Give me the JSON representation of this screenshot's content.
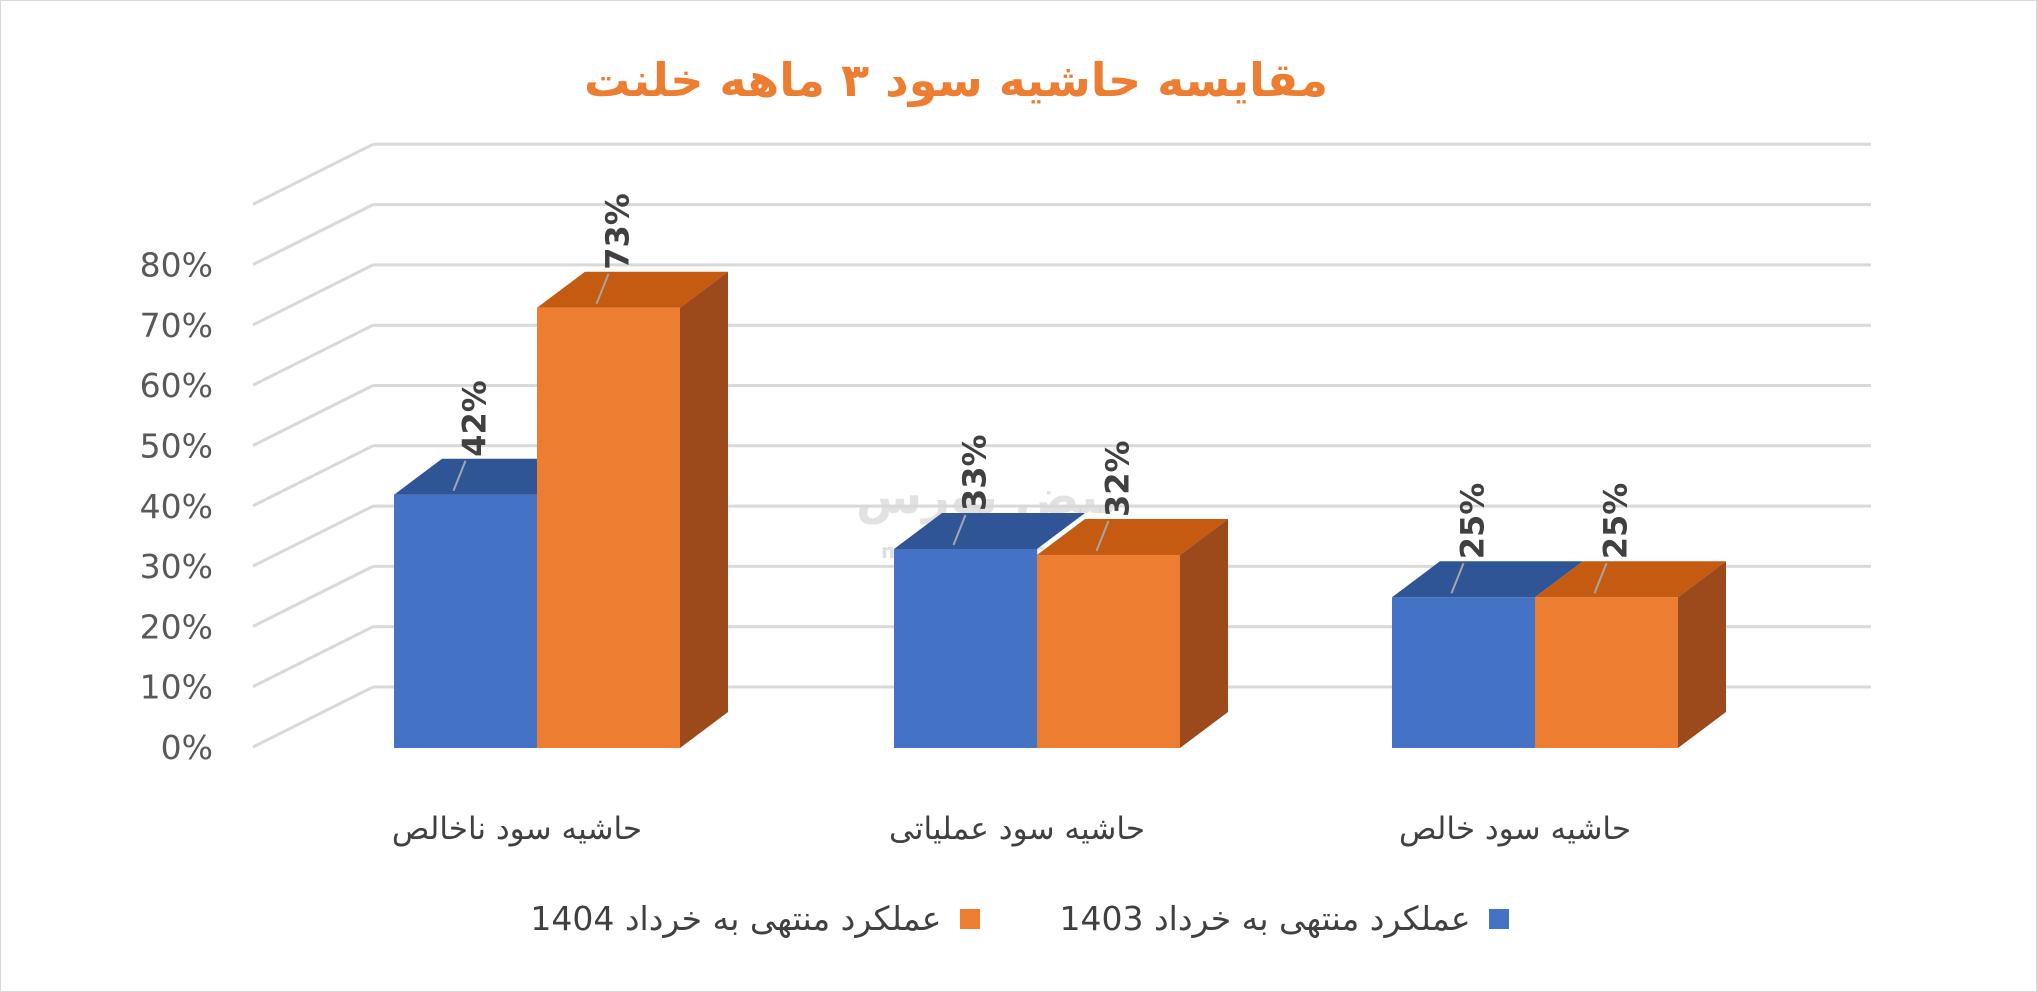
{
  "chart_data": {
    "type": "bar",
    "title": "مقایسه حاشیه سود ۳ ماهه خلنت",
    "categories": [
      "حاشیه سود ناخالص",
      "حاشیه سود عملیاتی",
      "حاشیه سود خالص"
    ],
    "series": [
      {
        "name": "عملکرد منتهی به خرداد 1403",
        "values": [
          42,
          33,
          25
        ],
        "labels": [
          "42%",
          "33%",
          "25%"
        ],
        "color": "#4472c4"
      },
      {
        "name": "عملکرد منتهی به خرداد 1404",
        "values": [
          73,
          32,
          25
        ],
        "labels": [
          "73%",
          "32%",
          "25%"
        ],
        "color": "#ed7d31"
      }
    ],
    "ylim": [
      0,
      90
    ],
    "yticks": [
      "0%",
      "10%",
      "20%",
      "30%",
      "40%",
      "50%",
      "60%",
      "70%",
      "80%"
    ],
    "grid": true,
    "legend_position": "bottom",
    "style": "3d-column"
  },
  "watermark": {
    "brand": "نبض بورس",
    "url": "nabzebourse.com"
  }
}
